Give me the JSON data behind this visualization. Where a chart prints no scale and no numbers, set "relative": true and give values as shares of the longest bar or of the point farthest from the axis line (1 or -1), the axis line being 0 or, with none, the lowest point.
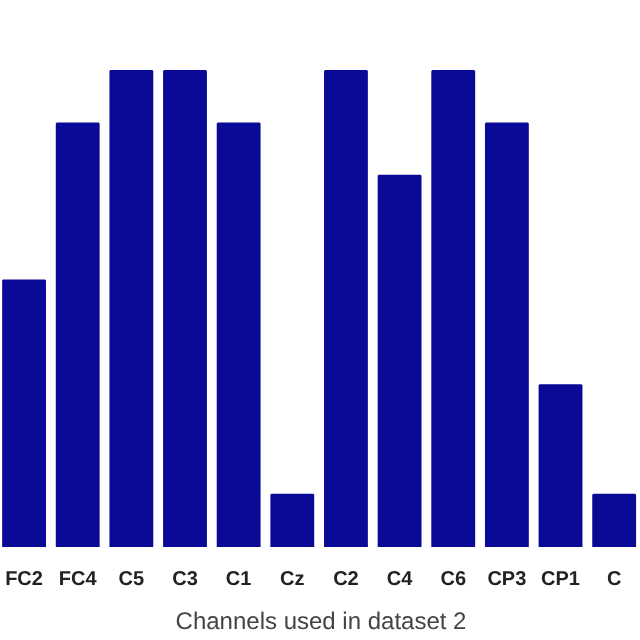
{
  "chart_data": {
    "type": "bar",
    "xlabel": "Channels used in dataset 2",
    "relative": true,
    "categories": [
      "FC2",
      "FC4",
      "C5",
      "C3",
      "C1",
      "Cz",
      "C2",
      "C4",
      "C6",
      "CP3",
      "CP1",
      "C"
    ],
    "values": [
      0.56,
      0.89,
      1,
      1,
      0.89,
      0.11,
      1,
      0.78,
      1,
      0.89,
      0.34,
      0.11
    ],
    "color": "#0a0a96",
    "grid": false
  }
}
